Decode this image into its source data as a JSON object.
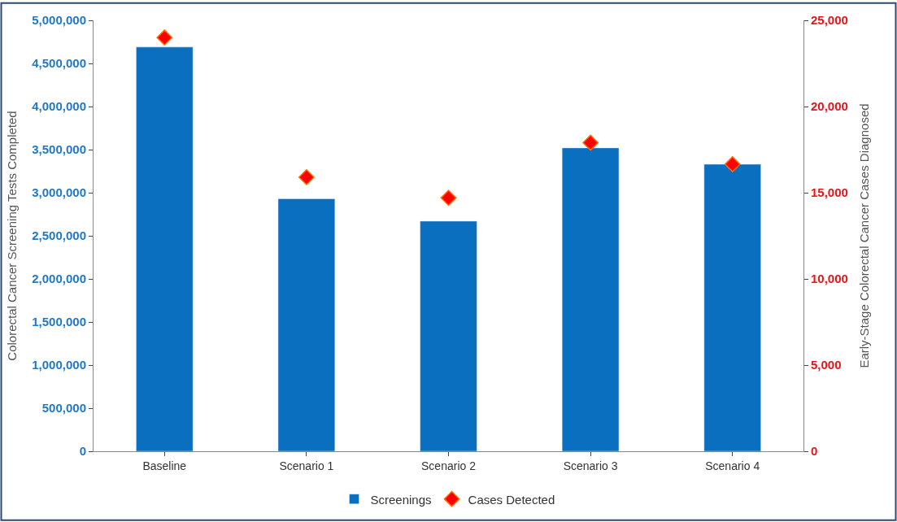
{
  "chart_data": {
    "type": "bar",
    "categories": [
      "Baseline",
      "Scenario 1",
      "Scenario 2",
      "Scenario 3",
      "Scenario 4"
    ],
    "ylabel": "Colorectal Cancer Screening Tests Completed",
    "y2label": "Early-Stage Colorectal Cancer Cases Diagnosed",
    "series": [
      {
        "name": "Screenings",
        "color": "#0b6fc0",
        "values": [
          4690000,
          2930000,
          2670000,
          3520000,
          3330000
        ]
      },
      {
        "name": "Cases Detected",
        "type": "scatter",
        "axis": "y2",
        "color": "#ff0000",
        "marker": "diamond",
        "values": [
          24000,
          15900,
          14700,
          17900,
          16650
        ]
      }
    ],
    "ylim": [
      0,
      5000000
    ],
    "yticks": [
      {
        "value": 0,
        "label": "0"
      },
      {
        "value": 500000,
        "label": "500,000"
      },
      {
        "value": 1000000,
        "label": "1,000,000"
      },
      {
        "value": 1500000,
        "label": "1,500,000"
      },
      {
        "value": 2000000,
        "label": "2,000,000"
      },
      {
        "value": 2500000,
        "label": "2,500,000"
      },
      {
        "value": 3000000,
        "label": "3,000,000"
      },
      {
        "value": 3500000,
        "label": "3,500,000"
      },
      {
        "value": 4000000,
        "label": "4,000,000"
      },
      {
        "value": 4500000,
        "label": "4,500,000"
      },
      {
        "value": 5000000,
        "label": "5,000,000"
      }
    ],
    "y2lim": [
      0,
      25000
    ],
    "y2ticks": [
      {
        "value": 0,
        "label": "0"
      },
      {
        "value": 5000,
        "label": "5,000"
      },
      {
        "value": 10000,
        "label": "10,000"
      },
      {
        "value": 15000,
        "label": "15,000"
      },
      {
        "value": 20000,
        "label": "20,000"
      },
      {
        "value": 25000,
        "label": "25,000"
      }
    ],
    "legend": "bottom"
  }
}
